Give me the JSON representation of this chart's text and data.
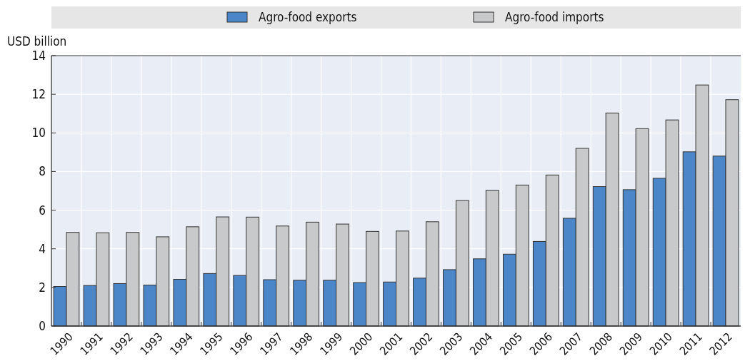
{
  "chart_data": {
    "type": "bar",
    "ylabel": "USD billion",
    "categories": [
      "1990",
      "1991",
      "1992",
      "1993",
      "1994",
      "1995",
      "1996",
      "1997",
      "1998",
      "1999",
      "2000",
      "2001",
      "2002",
      "2003",
      "2004",
      "2005",
      "2006",
      "2007",
      "2008",
      "2009",
      "2010",
      "2011",
      "2012"
    ],
    "series": [
      {
        "name": "Agro-food exports",
        "color": "#4a86c8",
        "values": [
          2.05,
          2.1,
          2.2,
          2.12,
          2.42,
          2.72,
          2.62,
          2.4,
          2.37,
          2.37,
          2.25,
          2.28,
          2.48,
          2.92,
          3.48,
          3.72,
          4.38,
          5.58,
          7.22,
          7.06,
          7.65,
          9.02,
          8.8
        ]
      },
      {
        "name": "Agro-food imports",
        "color": "#c8c9cb",
        "values": [
          4.85,
          4.83,
          4.85,
          4.62,
          5.14,
          5.65,
          5.64,
          5.18,
          5.38,
          5.28,
          4.9,
          4.92,
          5.4,
          6.5,
          7.03,
          7.3,
          7.82,
          9.2,
          11.03,
          10.22,
          10.67,
          12.48,
          11.72
        ]
      }
    ],
    "ylim": [
      0,
      14
    ],
    "yticks": [
      0,
      2,
      4,
      6,
      8,
      10,
      12,
      14
    ],
    "grid": true,
    "legend": "top"
  }
}
